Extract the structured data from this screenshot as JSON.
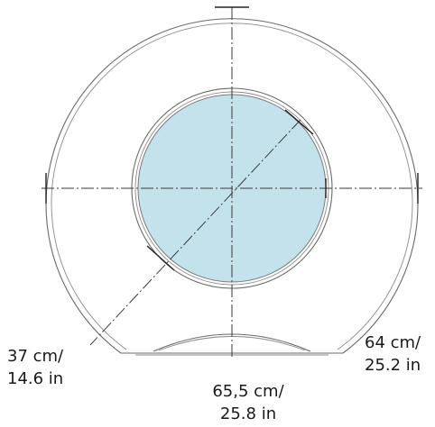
{
  "drawing": {
    "colors": {
      "outline": "#6b6b6b",
      "window_fill": "#c4e2ec",
      "axis": "#3a3a3a"
    }
  },
  "labels": {
    "window_diameter": {
      "metric": "37 cm/",
      "imperial": "14.6 in"
    },
    "overall_width": {
      "metric": "65,5 cm/",
      "imperial": "25.8 in"
    },
    "overall_height": {
      "metric": "64 cm/",
      "imperial": "25.2 in"
    }
  }
}
